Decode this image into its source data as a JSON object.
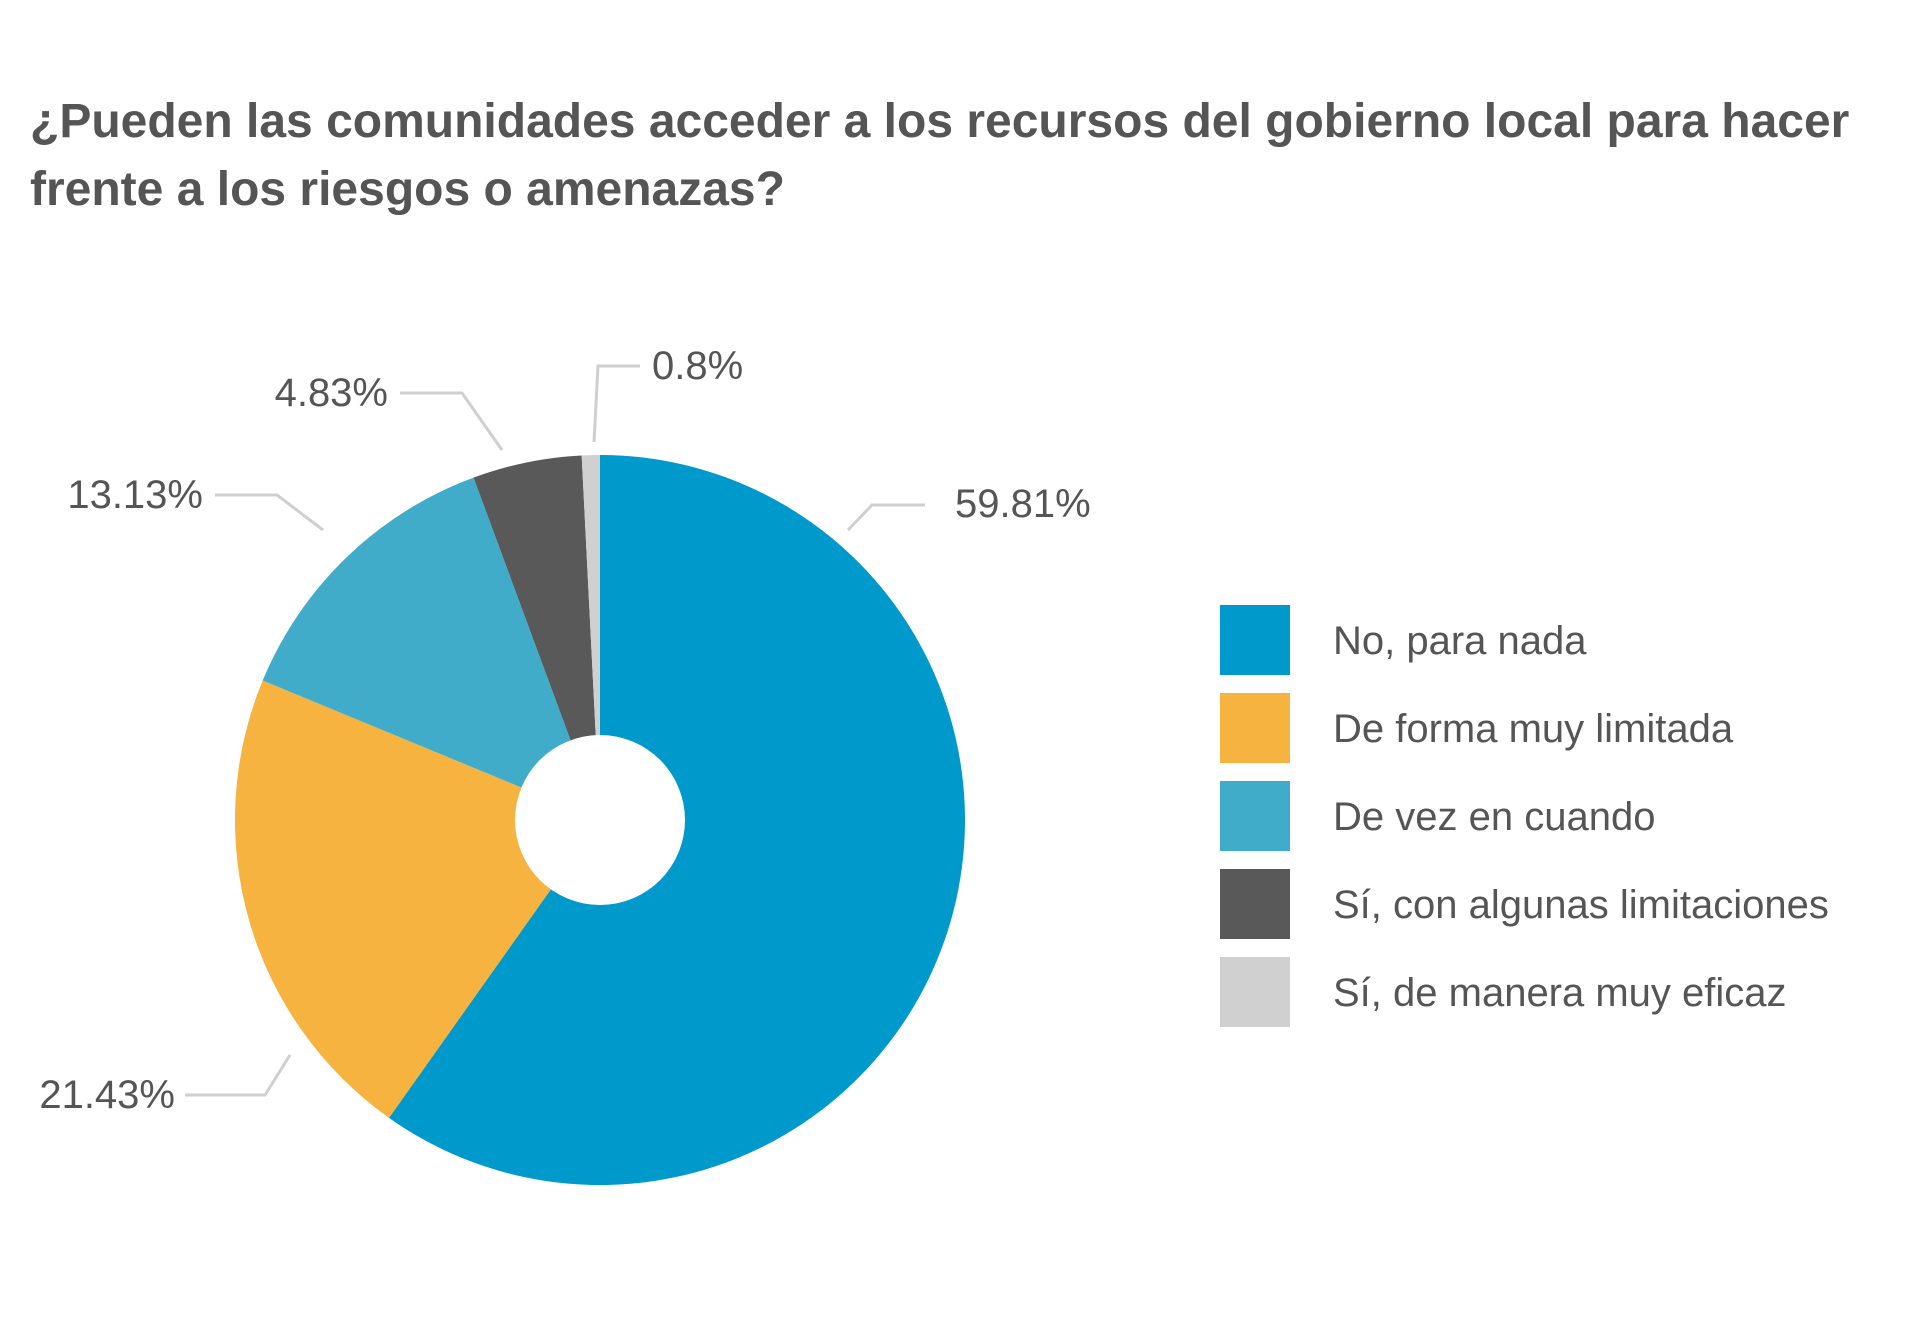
{
  "title": "¿Pueden las comunidades acceder a los recursos del gobierno local para hacer frente a los riesgos o amenazas?",
  "chart_data": {
    "type": "pie",
    "donut": true,
    "start_angle_deg": 0,
    "direction": "clockwise",
    "legend_position": "right",
    "slices": [
      {
        "label": "No, para nada",
        "value": 59.81,
        "display": "59.81%",
        "color": "#0099CC"
      },
      {
        "label": "De forma muy limitada",
        "value": 21.43,
        "display": "21.43%",
        "color": "#F6B33F"
      },
      {
        "label": "De vez en cuando",
        "value": 13.13,
        "display": "13.13%",
        "color": "#41ACC9"
      },
      {
        "label": "Sí, con algunas limitaciones",
        "value": 4.83,
        "display": "4.83%",
        "color": "#595959"
      },
      {
        "label": "Sí, de manera muy eficaz",
        "value": 0.8,
        "display": "0.8%",
        "color": "#D0D0D0"
      }
    ]
  }
}
